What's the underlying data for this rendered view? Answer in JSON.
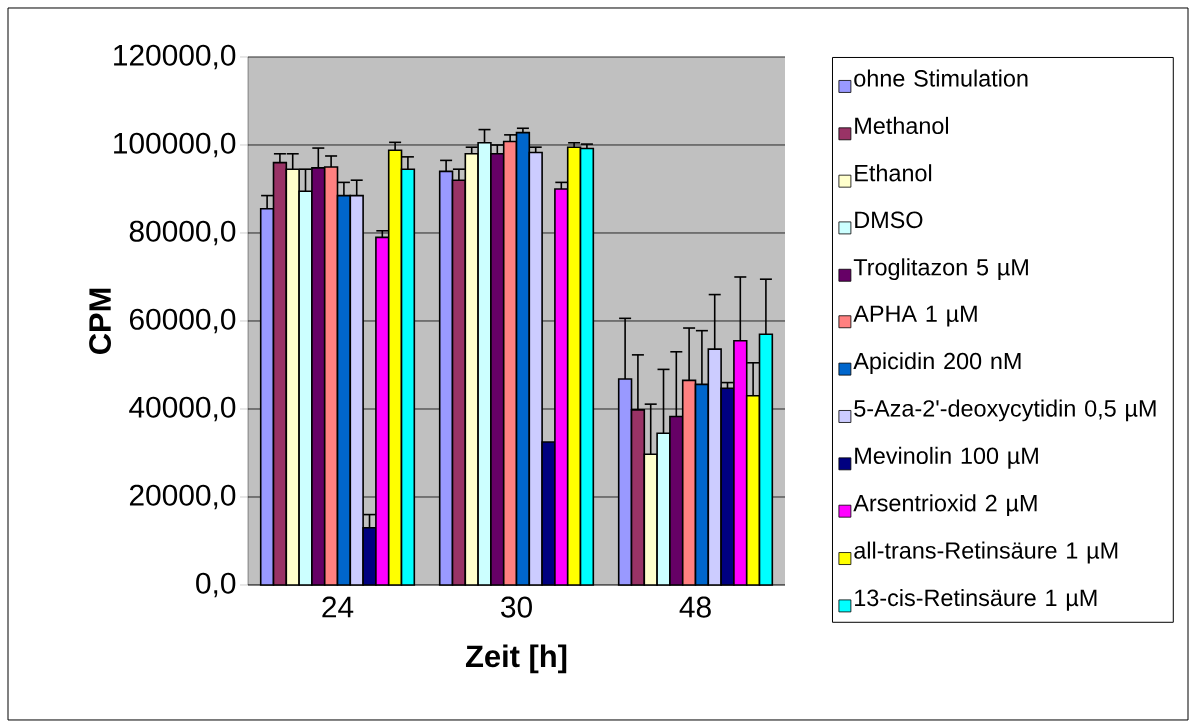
{
  "chart_data": {
    "type": "bar",
    "xlabel": "Zeit [h]",
    "ylabel": "CPM",
    "categories": [
      "24",
      "30",
      "48"
    ],
    "ylim": [
      0,
      120000
    ],
    "yticks": [
      {
        "value": 0,
        "label": "0,0"
      },
      {
        "value": 20000,
        "label": "20000,0"
      },
      {
        "value": 40000,
        "label": "40000,0"
      },
      {
        "value": 60000,
        "label": "60000,0"
      },
      {
        "value": 80000,
        "label": "80000,0"
      },
      {
        "value": 100000,
        "label": "100000,0"
      },
      {
        "value": 120000,
        "label": "120000,0"
      }
    ],
    "grid": "y",
    "legend": "right",
    "series": [
      {
        "name": "ohne Stimulation",
        "color": "#9999ff",
        "values": [
          85500,
          94000,
          46800
        ],
        "errors": [
          3000,
          2500,
          13800
        ]
      },
      {
        "name": "Methanol",
        "color": "#993366",
        "values": [
          96000,
          92000,
          39800
        ],
        "errors": [
          2000,
          2500,
          12500
        ]
      },
      {
        "name": "Ethanol",
        "color": "#ffffcc",
        "values": [
          94500,
          98000,
          29700
        ],
        "errors": [
          3500,
          1500,
          11400
        ]
      },
      {
        "name": "DMSO",
        "color": "#ccffff",
        "values": [
          89500,
          100500,
          34500
        ],
        "errors": [
          5000,
          3000,
          14500
        ]
      },
      {
        "name": "Troglitazon 5 µM",
        "color": "#660066",
        "values": [
          94800,
          98000,
          38300
        ],
        "errors": [
          4500,
          2000,
          14700
        ]
      },
      {
        "name": "APHA 1 µM",
        "color": "#ff8080",
        "values": [
          95000,
          100800,
          46500
        ],
        "errors": [
          2500,
          1500,
          11900
        ]
      },
      {
        "name": "Apicidin 200 nM",
        "color": "#0066cc",
        "values": [
          88500,
          102800,
          45600
        ],
        "errors": [
          3000,
          1000,
          12200
        ]
      },
      {
        "name": "5-Aza-2'-deoxycytidin 0,5 µM",
        "color": "#ccccff",
        "values": [
          88500,
          98300,
          53600
        ],
        "errors": [
          3500,
          1200,
          12400
        ]
      },
      {
        "name": "Mevinolin 100 µM",
        "color": "#000080",
        "values": [
          13000,
          32500,
          44700
        ],
        "errors": [
          3000,
          null,
          1300
        ]
      },
      {
        "name": "Arsentrioxid 2 µM",
        "color": "#ff00ff",
        "values": [
          79000,
          90000,
          55500
        ],
        "errors": [
          1500,
          1500,
          14500
        ]
      },
      {
        "name": "all-trans-Retinsäure 1 µM",
        "color": "#ffff00",
        "values": [
          98800,
          99500,
          43000
        ],
        "errors": [
          1800,
          1000,
          7500
        ]
      },
      {
        "name": "13-cis-Retinsäure 1 µM",
        "color": "#00ffff",
        "values": [
          94500,
          99200,
          57000
        ],
        "errors": [
          2800,
          1000,
          12500
        ]
      }
    ]
  }
}
